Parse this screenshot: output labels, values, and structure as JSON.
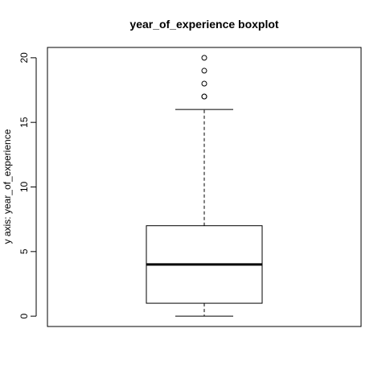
{
  "chart_data": {
    "type": "boxplot",
    "title": "year_of_experience boxplot",
    "xlabel": "",
    "ylabel": "y axis: year_of_experience",
    "yticks": [
      0,
      5,
      10,
      15,
      20
    ],
    "ytick_labels": [
      "0",
      "5",
      "10",
      "15",
      "20"
    ],
    "ylim": [
      -0.8,
      20.8
    ],
    "grid": false,
    "series": [
      {
        "min": 0,
        "q1": 1,
        "median": 4,
        "q3": 7,
        "max": 16,
        "outliers": [
          17,
          17,
          18,
          19,
          20
        ]
      }
    ]
  }
}
